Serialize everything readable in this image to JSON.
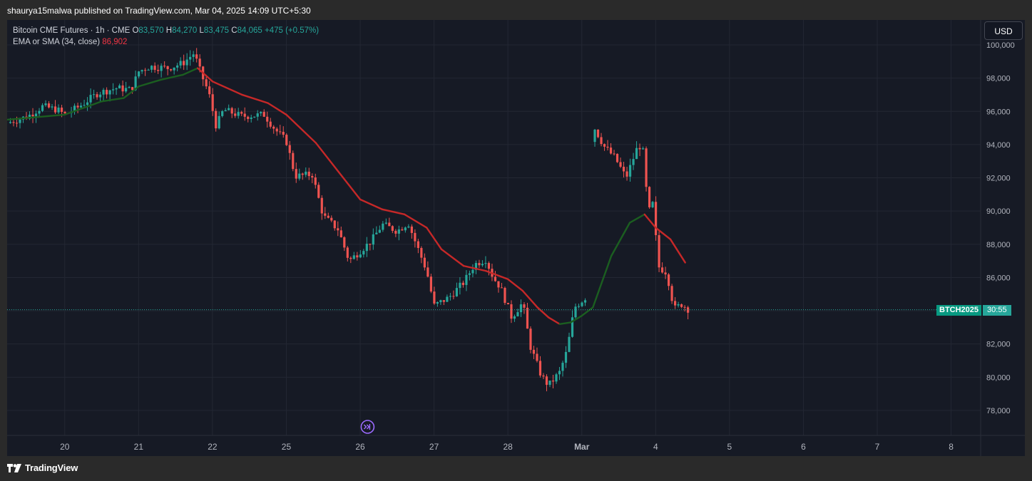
{
  "header": {
    "publish_line": "shaurya15malwa published on TradingView.com, Mar 04, 2025 14:09 UTC+5:30"
  },
  "legend": {
    "symbol": "Bitcoin CME Futures · 1h · CME",
    "o_label": "O",
    "o_value": "83,570",
    "h_label": "H",
    "h_value": "84,270",
    "l_label": "L",
    "l_value": "83,475",
    "c_label": "C",
    "c_value": "84,065",
    "change": "+475 (+0.57%)",
    "indicator_name": "EMA or SMA (34, close)",
    "indicator_value": "86,902"
  },
  "currency_button": "USD",
  "price_tag": {
    "symbol": "BTCH2025",
    "countdown": "30:55"
  },
  "footer": {
    "brand": "TradingView"
  },
  "colors": {
    "up": "#26a69a",
    "down": "#ef5350",
    "ma_up": "#1b5e20",
    "ma_down": "#c62828",
    "background": "#161a25",
    "grid": "#232733",
    "last_price_line": "#26a69a"
  },
  "chart_data": {
    "type": "candlestick",
    "title": "Bitcoin CME Futures · 1h · CME",
    "ylim": [
      76500,
      101500
    ],
    "y_ticks": [
      100000,
      98000,
      96000,
      94000,
      92000,
      90000,
      88000,
      86000,
      84000,
      82000,
      80000,
      78000
    ],
    "y_tick_labels": [
      "100,000",
      "98,000",
      "96,000",
      "94,000",
      "92,000",
      "90,000",
      "88,000",
      "86,000",
      "84,000",
      "82,000",
      "80,000",
      "78,000"
    ],
    "x_ticks": [
      {
        "label": "20",
        "day": 0
      },
      {
        "label": "21",
        "day": 1
      },
      {
        "label": "22",
        "day": 2
      },
      {
        "label": "25",
        "day": 3
      },
      {
        "label": "26",
        "day": 4
      },
      {
        "label": "27",
        "day": 5
      },
      {
        "label": "28",
        "day": 6
      },
      {
        "label": "Mar",
        "day": 7
      },
      {
        "label": "4",
        "day": 8
      },
      {
        "label": "5",
        "day": 9
      },
      {
        "label": "6",
        "day": 10
      },
      {
        "label": "7",
        "day": 11
      },
      {
        "label": "8",
        "day": 12
      }
    ],
    "x_range_days": [
      -0.78,
      12.4
    ],
    "last_price": 84065,
    "price_path": [
      [
        -0.78,
        95300
      ],
      [
        -0.5,
        95700
      ],
      [
        -0.3,
        96300
      ],
      [
        -0.1,
        96100
      ],
      [
        0.0,
        95800
      ],
      [
        0.2,
        96300
      ],
      [
        0.45,
        97100
      ],
      [
        0.7,
        97400
      ],
      [
        0.9,
        97300
      ],
      [
        1.0,
        98400
      ],
      [
        1.15,
        98700
      ],
      [
        1.4,
        98600
      ],
      [
        1.6,
        98900
      ],
      [
        1.75,
        99500
      ],
      [
        1.85,
        98200
      ],
      [
        1.95,
        97100
      ],
      [
        2.05,
        95100
      ],
      [
        2.15,
        96100
      ],
      [
        2.4,
        95700
      ],
      [
        2.7,
        95800
      ],
      [
        2.85,
        94900
      ],
      [
        3.0,
        94200
      ],
      [
        3.12,
        92100
      ],
      [
        3.35,
        92200
      ],
      [
        3.5,
        89700
      ],
      [
        3.7,
        88900
      ],
      [
        3.85,
        87000
      ],
      [
        4.0,
        87600
      ],
      [
        4.15,
        88200
      ],
      [
        4.3,
        89200
      ],
      [
        4.5,
        88800
      ],
      [
        4.65,
        89300
      ],
      [
        4.75,
        88100
      ],
      [
        4.9,
        86400
      ],
      [
        5.0,
        84300
      ],
      [
        5.2,
        84800
      ],
      [
        5.4,
        85700
      ],
      [
        5.55,
        86800
      ],
      [
        5.7,
        87100
      ],
      [
        5.8,
        86000
      ],
      [
        5.9,
        85400
      ],
      [
        6.05,
        83600
      ],
      [
        6.2,
        84500
      ],
      [
        6.3,
        81900
      ],
      [
        6.45,
        80100
      ],
      [
        6.55,
        79500
      ],
      [
        6.7,
        80300
      ],
      [
        6.8,
        81600
      ],
      [
        6.9,
        84200
      ],
      [
        7.05,
        84800
      ],
      [
        7.15,
        95200
      ],
      [
        7.3,
        93900
      ],
      [
        7.45,
        93200
      ],
      [
        7.6,
        92000
      ],
      [
        7.75,
        93800
      ],
      [
        7.82,
        94000
      ],
      [
        7.9,
        89900
      ],
      [
        7.98,
        90600
      ],
      [
        8.02,
        86700
      ],
      [
        8.15,
        86300
      ],
      [
        8.25,
        84100
      ],
      [
        8.35,
        84400
      ],
      [
        8.45,
        84065
      ]
    ],
    "series": [
      {
        "name": "EMA or SMA (34, close)",
        "points": [
          [
            -0.78,
            95500
          ],
          [
            0.0,
            95800
          ],
          [
            0.5,
            96600
          ],
          [
            0.8,
            96800
          ],
          [
            1.0,
            97500
          ],
          [
            1.3,
            97900
          ],
          [
            1.6,
            98200
          ],
          [
            1.8,
            98600
          ],
          [
            2.0,
            97800
          ],
          [
            2.4,
            97000
          ],
          [
            2.75,
            96500
          ],
          [
            3.0,
            95800
          ],
          [
            3.4,
            94100
          ],
          [
            3.7,
            92400
          ],
          [
            4.0,
            90700
          ],
          [
            4.3,
            90100
          ],
          [
            4.6,
            89800
          ],
          [
            4.9,
            89000
          ],
          [
            5.1,
            87700
          ],
          [
            5.4,
            86700
          ],
          [
            5.7,
            86400
          ],
          [
            6.0,
            85900
          ],
          [
            6.2,
            85200
          ],
          [
            6.4,
            84200
          ],
          [
            6.55,
            83600
          ],
          [
            6.7,
            83200
          ],
          [
            6.85,
            83300
          ],
          [
            7.0,
            83700
          ],
          [
            7.15,
            84200
          ],
          [
            7.4,
            87300
          ],
          [
            7.65,
            89300
          ],
          [
            7.85,
            89800
          ],
          [
            8.0,
            89000
          ],
          [
            8.2,
            88300
          ],
          [
            8.4,
            86902
          ]
        ]
      }
    ]
  }
}
